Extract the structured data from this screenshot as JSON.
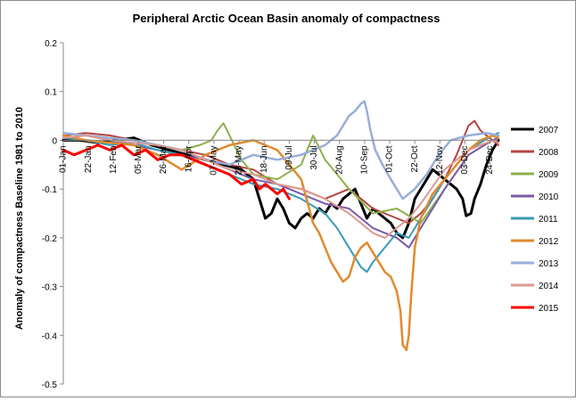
{
  "chart_data": {
    "type": "line",
    "title": "Peripheral Arctic  Ocean Basin anomaly of compactness",
    "xlabel": "",
    "ylabel": "Anomaly of compactness  Baseline  1981 to 2010",
    "ylim": [
      -0.5,
      0.2
    ],
    "yticks": [
      0.2,
      0.1,
      0,
      -0.1,
      -0.2,
      -0.3,
      -0.4,
      -0.5
    ],
    "ytick_labels": [
      "0.2",
      "0.1",
      "0",
      "-0.1",
      "-0.2",
      "-0.3",
      "-0.4",
      "-0.5"
    ],
    "xlim": [
      1,
      365
    ],
    "x_ticks": [
      {
        "day": 1,
        "label": "01-Jan"
      },
      {
        "day": 22,
        "label": "22-Jan"
      },
      {
        "day": 43,
        "label": "12-Feb"
      },
      {
        "day": 64,
        "label": "05-Mar"
      },
      {
        "day": 85,
        "label": "26-Mar"
      },
      {
        "day": 106,
        "label": "16-Apr"
      },
      {
        "day": 127,
        "label": "07-May"
      },
      {
        "day": 148,
        "label": "28-May"
      },
      {
        "day": 169,
        "label": "18-Jun"
      },
      {
        "day": 190,
        "label": "09-Jul"
      },
      {
        "day": 211,
        "label": "30-Jul"
      },
      {
        "day": 232,
        "label": "20-Aug"
      },
      {
        "day": 253,
        "label": "10-Sep"
      },
      {
        "day": 274,
        "label": "01-Oct"
      },
      {
        "day": 295,
        "label": "22-Oct"
      },
      {
        "day": 316,
        "label": "12-Nov"
      },
      {
        "day": 337,
        "label": "03-Dec"
      },
      {
        "day": 358,
        "label": "24-Dec"
      }
    ],
    "grid": false,
    "legend_position": "right",
    "series": [
      {
        "name": "2007",
        "color": "#000000",
        "width": 3,
        "x": [
          1,
          15,
          30,
          45,
          60,
          75,
          90,
          105,
          120,
          135,
          150,
          160,
          165,
          170,
          175,
          180,
          185,
          190,
          195,
          200,
          205,
          210,
          215,
          220,
          225,
          230,
          235,
          240,
          245,
          250,
          255,
          260,
          265,
          270,
          275,
          280,
          285,
          290,
          295,
          300,
          305,
          310,
          315,
          320,
          325,
          330,
          335,
          338,
          342,
          345,
          350,
          355,
          360,
          365
        ],
        "y": [
          0.0,
          0.0,
          -0.005,
          0.0,
          0.005,
          -0.01,
          -0.02,
          -0.03,
          -0.04,
          -0.05,
          -0.06,
          -0.08,
          -0.12,
          -0.16,
          -0.15,
          -0.12,
          -0.14,
          -0.17,
          -0.18,
          -0.16,
          -0.15,
          -0.16,
          -0.14,
          -0.15,
          -0.13,
          -0.14,
          -0.12,
          -0.11,
          -0.1,
          -0.13,
          -0.16,
          -0.14,
          -0.15,
          -0.16,
          -0.17,
          -0.19,
          -0.2,
          -0.17,
          -0.12,
          -0.1,
          -0.08,
          -0.06,
          -0.07,
          -0.08,
          -0.09,
          -0.1,
          -0.12,
          -0.155,
          -0.15,
          -0.12,
          -0.09,
          -0.05,
          -0.02,
          0.0
        ]
      },
      {
        "name": "2008",
        "color": "#b5443f",
        "width": 2,
        "x": [
          1,
          20,
          40,
          60,
          80,
          100,
          120,
          140,
          160,
          180,
          200,
          220,
          240,
          260,
          280,
          290,
          300,
          310,
          320,
          330,
          340,
          345,
          350,
          355,
          360,
          365
        ],
        "y": [
          0.01,
          0.015,
          0.01,
          0.0,
          -0.01,
          -0.02,
          -0.03,
          -0.05,
          -0.06,
          -0.09,
          -0.1,
          -0.12,
          -0.1,
          -0.14,
          -0.16,
          -0.17,
          -0.15,
          -0.12,
          -0.08,
          -0.03,
          0.03,
          0.04,
          0.02,
          0.01,
          0.0,
          -0.01
        ]
      },
      {
        "name": "2009",
        "color": "#8db04a",
        "width": 2,
        "x": [
          1,
          20,
          40,
          60,
          80,
          100,
          115,
          125,
          130,
          135,
          140,
          150,
          160,
          180,
          200,
          210,
          220,
          240,
          260,
          280,
          300,
          320,
          340,
          360,
          365
        ],
        "y": [
          0.015,
          0.01,
          0.005,
          0.0,
          -0.01,
          -0.02,
          -0.01,
          0.0,
          0.02,
          0.035,
          0.01,
          -0.04,
          -0.07,
          -0.08,
          -0.05,
          0.01,
          -0.04,
          -0.1,
          -0.15,
          -0.14,
          -0.17,
          -0.1,
          -0.03,
          0.0,
          0.005
        ]
      },
      {
        "name": "2010",
        "color": "#7a5aa6",
        "width": 2,
        "x": [
          1,
          20,
          40,
          60,
          80,
          100,
          120,
          140,
          160,
          180,
          200,
          220,
          240,
          260,
          280,
          290,
          300,
          320,
          340,
          360,
          365
        ],
        "y": [
          0.005,
          0.01,
          0.0,
          -0.01,
          -0.02,
          -0.03,
          -0.04,
          -0.06,
          -0.08,
          -0.09,
          -0.11,
          -0.13,
          -0.14,
          -0.18,
          -0.2,
          -0.22,
          -0.18,
          -0.1,
          -0.03,
          0.0,
          0.005
        ]
      },
      {
        "name": "2011",
        "color": "#3a9bb7",
        "width": 2,
        "x": [
          1,
          20,
          40,
          60,
          80,
          100,
          120,
          140,
          160,
          180,
          200,
          220,
          230,
          240,
          250,
          255,
          260,
          270,
          280,
          290,
          300,
          320,
          340,
          360,
          365
        ],
        "y": [
          0.005,
          0.0,
          -0.01,
          -0.005,
          -0.02,
          -0.03,
          -0.05,
          -0.07,
          -0.09,
          -0.1,
          -0.12,
          -0.15,
          -0.18,
          -0.22,
          -0.26,
          -0.27,
          -0.25,
          -0.22,
          -0.19,
          -0.2,
          -0.16,
          -0.08,
          -0.02,
          0.01,
          0.015
        ]
      },
      {
        "name": "2012",
        "color": "#e08a2d",
        "width": 2.5,
        "x": [
          1,
          20,
          40,
          60,
          80,
          100,
          120,
          140,
          160,
          180,
          200,
          210,
          215,
          220,
          225,
          230,
          235,
          240,
          245,
          250,
          255,
          260,
          265,
          270,
          275,
          280,
          283,
          285,
          288,
          290,
          292,
          295,
          300,
          310,
          320,
          330,
          340,
          350,
          360,
          365
        ],
        "y": [
          0.01,
          0.0,
          -0.005,
          -0.01,
          -0.03,
          -0.06,
          -0.03,
          -0.01,
          0.0,
          -0.02,
          -0.08,
          -0.17,
          -0.19,
          -0.22,
          -0.25,
          -0.27,
          -0.29,
          -0.28,
          -0.24,
          -0.22,
          -0.21,
          -0.23,
          -0.25,
          -0.27,
          -0.28,
          -0.31,
          -0.35,
          -0.42,
          -0.43,
          -0.4,
          -0.32,
          -0.22,
          -0.16,
          -0.11,
          -0.08,
          -0.05,
          -0.02,
          0.0,
          0.01,
          0.005
        ]
      },
      {
        "name": "2013",
        "color": "#98aed8",
        "width": 2.5,
        "x": [
          1,
          20,
          40,
          60,
          80,
          100,
          120,
          140,
          160,
          180,
          200,
          220,
          225,
          230,
          235,
          240,
          245,
          250,
          253,
          255,
          258,
          262,
          268,
          275,
          285,
          295,
          305,
          315,
          325,
          340,
          355,
          365
        ],
        "y": [
          0.015,
          0.01,
          0.005,
          0.0,
          -0.01,
          -0.02,
          -0.04,
          -0.05,
          -0.03,
          -0.04,
          -0.03,
          -0.01,
          0.0,
          0.01,
          0.03,
          0.05,
          0.06,
          0.075,
          0.08,
          0.06,
          0.02,
          -0.02,
          -0.05,
          -0.08,
          -0.12,
          -0.1,
          -0.07,
          -0.03,
          0.0,
          0.01,
          0.015,
          0.01
        ]
      },
      {
        "name": "2014",
        "color": "#dc9a92",
        "width": 2,
        "x": [
          1,
          20,
          40,
          60,
          80,
          100,
          120,
          140,
          160,
          180,
          200,
          220,
          240,
          260,
          270,
          280,
          290,
          300,
          320,
          340,
          360,
          365
        ],
        "y": [
          0.005,
          0.01,
          0.0,
          -0.005,
          -0.01,
          -0.02,
          -0.04,
          -0.06,
          -0.07,
          -0.09,
          -0.1,
          -0.12,
          -0.15,
          -0.19,
          -0.2,
          -0.18,
          -0.16,
          -0.13,
          -0.06,
          -0.02,
          0.0,
          -0.005
        ]
      },
      {
        "name": "2015",
        "color": "#ff0000",
        "width": 3,
        "x": [
          1,
          10,
          20,
          30,
          40,
          50,
          60,
          70,
          80,
          90,
          100,
          110,
          120,
          130,
          140,
          150,
          160,
          165,
          170,
          175,
          180,
          185,
          190
        ],
        "y": [
          -0.02,
          -0.03,
          -0.02,
          -0.01,
          -0.02,
          -0.01,
          -0.03,
          -0.02,
          -0.04,
          -0.03,
          -0.03,
          -0.04,
          -0.05,
          -0.06,
          -0.07,
          -0.09,
          -0.08,
          -0.1,
          -0.09,
          -0.1,
          -0.11,
          -0.1,
          -0.12
        ]
      }
    ]
  }
}
